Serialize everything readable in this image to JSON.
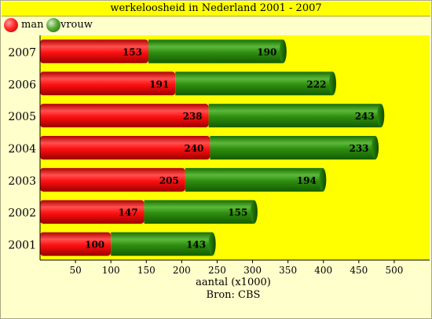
{
  "chart_data": {
    "type": "bar",
    "orientation": "horizontal",
    "stacked": true,
    "title": "werkeloosheid in Nederland 2001 - 2007",
    "xlabel": "aantal (x1000)",
    "source_note": "Bron:  CBS",
    "categories": [
      "2007",
      "2006",
      "2005",
      "2004",
      "2003",
      "2002",
      "2001"
    ],
    "series": [
      {
        "name": "man",
        "color": "#e60000",
        "values": [
          153,
          191,
          238,
          240,
          205,
          147,
          100
        ]
      },
      {
        "name": "vrouw",
        "color": "#1e8a00",
        "values": [
          190,
          222,
          243,
          233,
          194,
          155,
          143
        ]
      }
    ],
    "xticks": [
      50,
      100,
      150,
      200,
      250,
      300,
      350,
      400,
      450,
      500
    ],
    "xlim": [
      0,
      550
    ],
    "plot_background": "#ffff00",
    "grid": false,
    "legend_position": "top-left"
  }
}
